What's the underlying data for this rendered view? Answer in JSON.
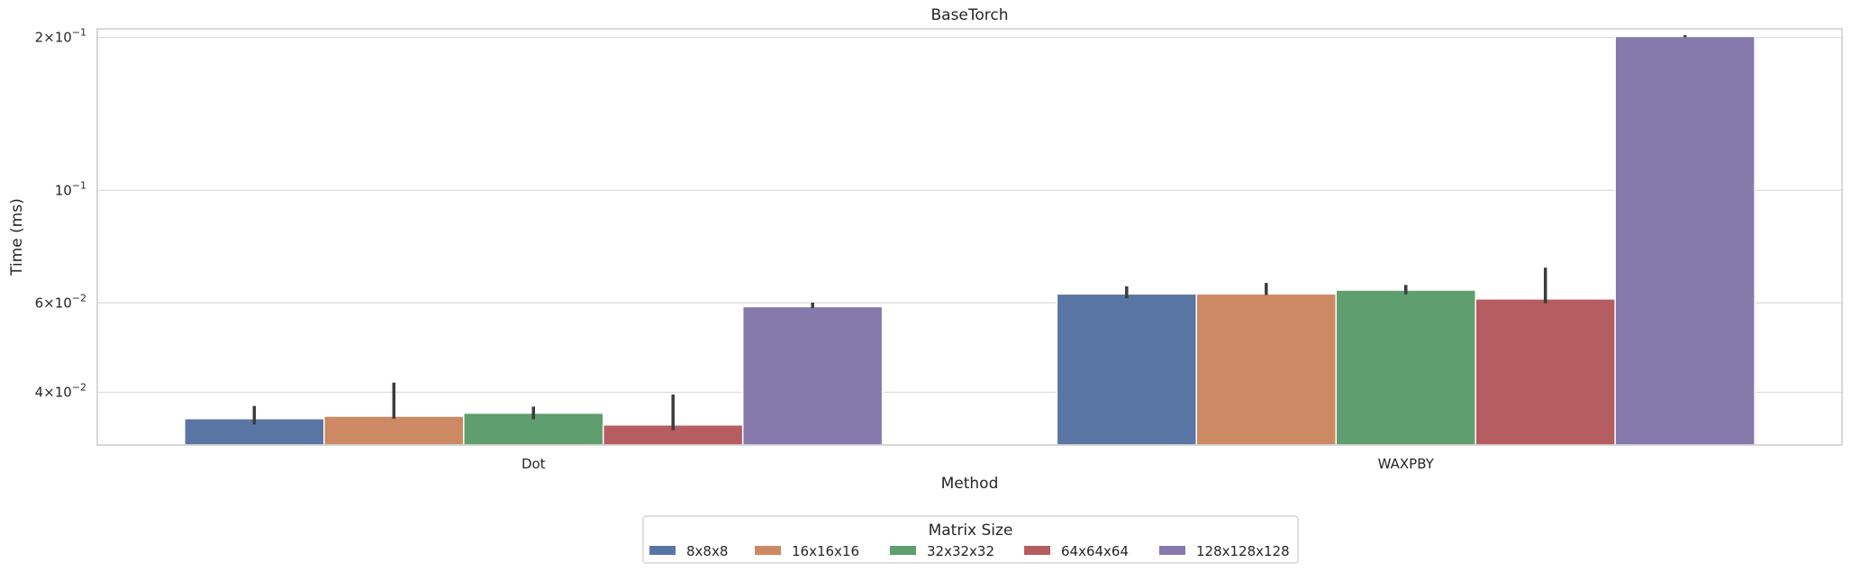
{
  "chart_data": {
    "type": "bar",
    "title": "BaseTorch",
    "xlabel": "Method",
    "ylabel": "Time (ms)",
    "yscale": "log",
    "ylim": [
      0.0315,
      0.208
    ],
    "yticks": [
      {
        "value": 0.04,
        "mant": "4",
        "exp": "−2"
      },
      {
        "value": 0.06,
        "mant": "6",
        "exp": "−2"
      },
      {
        "value": 0.1,
        "mant": "",
        "exp": "−1"
      },
      {
        "value": 0.2,
        "mant": "2",
        "exp": "−1"
      }
    ],
    "grid": true,
    "categories": [
      "Dot",
      "WAXPBY"
    ],
    "legend": {
      "title": "Matrix Size",
      "placement": "bottom-center"
    },
    "series": [
      {
        "name": "8x8x8",
        "color": "#5975a4",
        "values": [
          0.0355,
          0.0625
        ],
        "error_low": [
          0.0346,
          0.0613
        ],
        "error_high": [
          0.0376,
          0.0647
        ]
      },
      {
        "name": "16x16x16",
        "color": "#cc8963",
        "values": [
          0.0359,
          0.0625
        ],
        "error_low": [
          0.0355,
          0.0622
        ],
        "error_high": [
          0.0418,
          0.0657
        ]
      },
      {
        "name": "32x32x32",
        "color": "#5f9e6e",
        "values": [
          0.0364,
          0.0636
        ],
        "error_low": [
          0.0354,
          0.0624
        ],
        "error_high": [
          0.0375,
          0.0651
        ]
      },
      {
        "name": "64x64x64",
        "color": "#b55d60",
        "values": [
          0.0345,
          0.0611
        ],
        "error_low": [
          0.0337,
          0.0599
        ],
        "error_high": [
          0.0396,
          0.0704
        ]
      },
      {
        "name": "128x128x128",
        "color": "#857aab",
        "values": [
          0.059,
          0.201
        ],
        "error_low": [
          0.0586,
          0.2003
        ],
        "error_high": [
          0.0601,
          0.2021
        ]
      }
    ]
  }
}
